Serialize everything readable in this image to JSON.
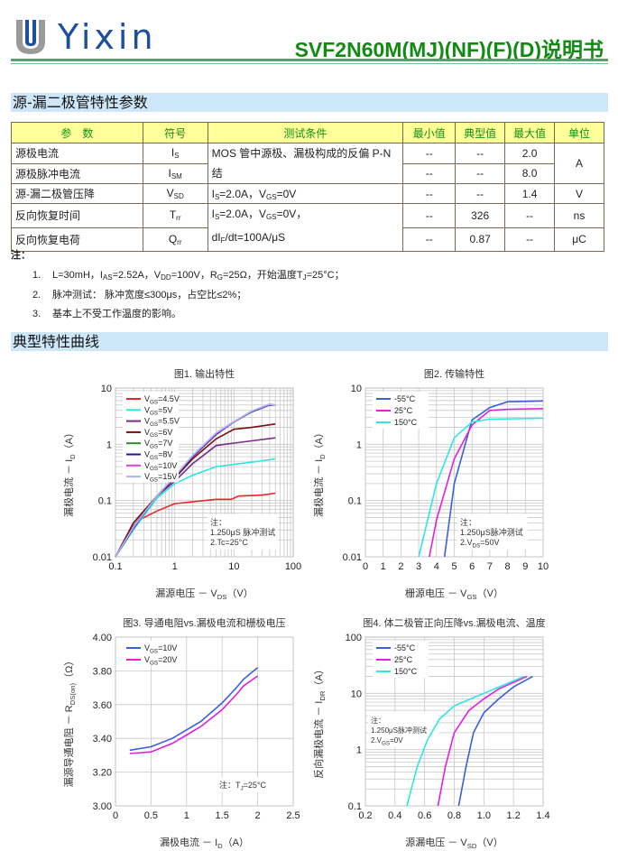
{
  "header": {
    "brand": "Yixin",
    "title": "SVF2N60M(MJ)(NF)(F)(D)说明书",
    "colors": {
      "brand": "#1d4f9c",
      "title": "#138a13",
      "rule": "#4fa56a"
    }
  },
  "section1": {
    "title": "源-漏二极管特性参数"
  },
  "table": {
    "headers": [
      "参　数",
      "符号",
      "测试条件",
      "最小值",
      "典型值",
      "最大值",
      "单位"
    ],
    "rows": [
      {
        "param": "源极电流",
        "symbol": [
          {
            "t": "I"
          },
          {
            "s": "S"
          }
        ],
        "cond": [
          {
            "t": "MOS 管中源极、漏极构成的反偏 P-N 结"
          }
        ],
        "min": "--",
        "typ": "--",
        "max": "2.0",
        "unit": "A"
      },
      {
        "param": "源极脉冲电流",
        "symbol": [
          {
            "t": "I"
          },
          {
            "s": "SM"
          }
        ],
        "min": "--",
        "typ": "--",
        "max": "8.0"
      },
      {
        "param": "源-漏二极管压降",
        "symbol": [
          {
            "t": "V"
          },
          {
            "s": "SD"
          }
        ],
        "cond": [
          {
            "t": "I"
          },
          {
            "s": "S"
          },
          {
            "t": "=2.0A，V"
          },
          {
            "s": "GS"
          },
          {
            "t": "=0V"
          }
        ],
        "min": "--",
        "typ": "--",
        "max": "1.4",
        "unit": "V"
      },
      {
        "param": "反向恢复时间",
        "symbol": [
          {
            "t": "T"
          },
          {
            "s": "rr"
          }
        ],
        "cond": [
          {
            "t": "I"
          },
          {
            "s": "S"
          },
          {
            "t": "=2.0A，V"
          },
          {
            "s": "GS"
          },
          {
            "t": "=0V，"
          }
        ],
        "cond2": [
          {
            "t": "dI"
          },
          {
            "s": "F"
          },
          {
            "t": "/dt=100A/μS"
          }
        ],
        "min": "--",
        "typ": "326",
        "max": "--",
        "unit": "ns"
      },
      {
        "param": "反向恢复电荷",
        "symbol": [
          {
            "t": "Q"
          },
          {
            "s": "rr"
          }
        ],
        "min": "--",
        "typ": "0.87",
        "max": "--",
        "unit": "μC"
      }
    ]
  },
  "notes": {
    "heading": "注：",
    "items": [
      {
        "num": "1.",
        "text": [
          {
            "t": "L=30mH，I"
          },
          {
            "s": "AS"
          },
          {
            "t": "=2.52A，V"
          },
          {
            "s": "DD"
          },
          {
            "t": "=100V，R"
          },
          {
            "s": "G"
          },
          {
            "t": "=25Ω，开始温度T"
          },
          {
            "s": "J"
          },
          {
            "t": "=25°C；"
          }
        ]
      },
      {
        "num": "2.",
        "text": [
          {
            "t": "脉冲测试：  脉冲宽度≤300μs，占空比≤2%；"
          }
        ]
      },
      {
        "num": "3.",
        "text": [
          {
            "t": "基本上不受工作温度的影响。"
          }
        ]
      }
    ]
  },
  "section2": {
    "title": "典型特性曲线"
  },
  "chart_data": [
    {
      "type": "line",
      "title": "图1. 输出特性",
      "xlabel": [
        {
          "t": "漏源电压 － V"
        },
        {
          "s": "DS"
        },
        {
          "t": "（V）"
        }
      ],
      "ylabel": [
        {
          "t": "漏极电流 － I"
        },
        {
          "s": "D"
        },
        {
          "t": "（A）"
        }
      ],
      "xscale": "log",
      "yscale": "log",
      "xlim": [
        0.1,
        100
      ],
      "ylim": [
        0.01,
        10
      ],
      "xticks": [
        "0.1",
        "1",
        "10",
        "100"
      ],
      "yticks": [
        "0.01",
        "0.1",
        "1",
        "10"
      ],
      "grid": true,
      "legend": "top-left",
      "note": [
        "注：",
        "1.250μS 脉冲测试",
        "2.Tc=25°C"
      ],
      "series": [
        {
          "name": "VGS=4.5V",
          "color": "#e8262a",
          "x": [
            0.1,
            0.2,
            0.25,
            0.5,
            1,
            2,
            5,
            9,
            12,
            30,
            50
          ],
          "y": [
            0.01,
            0.035,
            0.045,
            0.065,
            0.088,
            0.095,
            0.105,
            0.105,
            0.12,
            0.125,
            0.135
          ]
        },
        {
          "name": "VGS=5V",
          "color": "#2ee6e6",
          "x": [
            0.1,
            0.2,
            0.5,
            1,
            2,
            5,
            10,
            20,
            50
          ],
          "y": [
            0.01,
            0.03,
            0.11,
            0.2,
            0.28,
            0.4,
            0.44,
            0.48,
            0.55
          ]
        },
        {
          "name": "VGS=5.5V",
          "color": "#7a2a8a",
          "x": [
            0.1,
            0.2,
            0.5,
            1,
            2,
            5,
            10,
            20,
            50
          ],
          "y": [
            0.01,
            0.035,
            0.12,
            0.22,
            0.45,
            0.95,
            1.05,
            1.15,
            1.3
          ]
        },
        {
          "name": "VGS=6V",
          "color": "#7a1010",
          "x": [
            0.1,
            0.2,
            0.5,
            1,
            2,
            5,
            10,
            20,
            50
          ],
          "y": [
            0.01,
            0.04,
            0.12,
            0.25,
            0.55,
            1.25,
            1.85,
            2.0,
            2.3
          ]
        },
        {
          "name": "VGS=7V",
          "color": "#2a8a2a",
          "x": [
            0.1,
            0.2,
            0.5,
            1,
            2,
            5,
            10,
            20,
            40,
            50
          ],
          "y": [
            0.01,
            0.033,
            0.12,
            0.26,
            0.6,
            1.5,
            2.5,
            3.8,
            5.0,
            5.0
          ]
        },
        {
          "name": "VGS=8V",
          "color": "#1a1a9a",
          "x": [
            0.1,
            0.2,
            0.5,
            1,
            2,
            5,
            10,
            20,
            40,
            50
          ],
          "y": [
            0.01,
            0.032,
            0.12,
            0.26,
            0.6,
            1.5,
            2.5,
            3.8,
            5.0,
            5.0
          ]
        },
        {
          "name": "VGS=10V",
          "color": "#e040e0",
          "x": [
            0.1,
            0.2,
            0.5,
            1,
            2,
            5,
            10,
            20,
            40,
            50
          ],
          "y": [
            0.01,
            0.033,
            0.12,
            0.27,
            0.62,
            1.55,
            2.5,
            3.9,
            5.1,
            5.0
          ]
        },
        {
          "name": "VGS=15V",
          "color": "#a8b8ee",
          "x": [
            0.1,
            0.2,
            0.5,
            1,
            2,
            5,
            10,
            20,
            40,
            50
          ],
          "y": [
            0.01,
            0.034,
            0.12,
            0.27,
            0.63,
            1.6,
            2.55,
            3.9,
            5.2,
            5.0
          ]
        }
      ]
    },
    {
      "type": "line",
      "title": "图2. 传输特性",
      "xlabel": [
        {
          "t": "栅源电压 － V"
        },
        {
          "s": "GS"
        },
        {
          "t": "（V）"
        }
      ],
      "ylabel": [
        {
          "t": "漏极电流 － I"
        },
        {
          "s": "D"
        },
        {
          "t": "（A）"
        }
      ],
      "xscale": "linear",
      "yscale": "log",
      "xlim": [
        0,
        10
      ],
      "ylim": [
        0.01,
        10
      ],
      "xticks": [
        "0",
        "1",
        "2",
        "3",
        "4",
        "5",
        "6",
        "7",
        "8",
        "9",
        "10"
      ],
      "yticks": [
        "0.01",
        "0.1",
        "1",
        "10"
      ],
      "grid": true,
      "legend": "top-left",
      "note": [
        "注：",
        "1.250μS脉冲测试",
        "2.VDS=50V"
      ],
      "series": [
        {
          "name": "-55°C",
          "color": "#3a5fd8",
          "x": [
            4.45,
            5,
            6,
            7,
            8,
            10
          ],
          "y": [
            0.01,
            0.2,
            2.7,
            4.5,
            5.7,
            5.9
          ]
        },
        {
          "name": "25°C",
          "color": "#e020e0",
          "x": [
            3.6,
            4,
            5,
            6,
            7,
            8,
            10
          ],
          "y": [
            0.01,
            0.045,
            0.55,
            2.2,
            4.0,
            4.2,
            4.3
          ]
        },
        {
          "name": "150°C",
          "color": "#2ee6e6",
          "x": [
            3,
            4,
            5,
            6,
            7,
            10
          ],
          "y": [
            0.01,
            0.2,
            1.3,
            2.5,
            2.8,
            2.9
          ]
        }
      ]
    },
    {
      "type": "line",
      "title": "图3. 导通电阻vs.漏极电流和栅极电压",
      "xlabel": [
        {
          "t": "漏极电流 － I"
        },
        {
          "s": "D"
        },
        {
          "t": "（A）"
        }
      ],
      "ylabel": [
        {
          "t": "漏源导通电阻 － R"
        },
        {
          "s": "DS(on)"
        },
        {
          "t": "（Ω）"
        }
      ],
      "xscale": "linear",
      "yscale": "linear",
      "xlim": [
        0,
        2.5
      ],
      "ylim": [
        3.0,
        4.0
      ],
      "xticks": [
        "0",
        "0.5",
        "1",
        "1.5",
        "2",
        "2.5"
      ],
      "yticks": [
        "3.00",
        "3.20",
        "3.40",
        "3.60",
        "3.80",
        "4.00"
      ],
      "grid": true,
      "legend": "top-left",
      "note": [
        "注：TJ=25°C"
      ],
      "series": [
        {
          "name": "VGS=10V",
          "color": "#3a5fd8",
          "x": [
            0.2,
            0.5,
            0.8,
            1,
            1.2,
            1.5,
            1.7,
            1.8,
            2
          ],
          "y": [
            3.33,
            3.35,
            3.4,
            3.45,
            3.5,
            3.61,
            3.7,
            3.75,
            3.82
          ]
        },
        {
          "name": "VGS=20V",
          "color": "#e020e0",
          "x": [
            0.2,
            0.5,
            0.8,
            1,
            1.2,
            1.5,
            1.7,
            1.8,
            2
          ],
          "y": [
            3.31,
            3.32,
            3.37,
            3.42,
            3.47,
            3.57,
            3.66,
            3.71,
            3.77
          ]
        }
      ]
    },
    {
      "type": "line",
      "title": "图4. 体二极管正向压降vs.漏极电流、温度",
      "xlabel": [
        {
          "t": "源漏电压 － V"
        },
        {
          "s": "SD"
        },
        {
          "t": "（V）"
        }
      ],
      "ylabel": [
        {
          "t": "反向漏极电流 － I"
        },
        {
          "s": "DR"
        },
        {
          "t": "（A）"
        }
      ],
      "xscale": "linear",
      "yscale": "log",
      "xlim": [
        0.2,
        1.4
      ],
      "ylim": [
        0.1,
        100
      ],
      "xticks": [
        "0.2",
        "0.4",
        "0.6",
        "0.8",
        "1.0",
        "1.2",
        "1.4"
      ],
      "yticks": [
        "0.1",
        "1",
        "10",
        "100"
      ],
      "grid": true,
      "legend": "top-left",
      "note": [
        "注：",
        "1.250μS脉冲测试",
        "2.VGS=0V"
      ],
      "series": [
        {
          "name": "-55°C",
          "color": "#3a5fd8",
          "x": [
            0.83,
            0.88,
            0.93,
            1.0,
            1.1,
            1.2,
            1.33
          ],
          "y": [
            0.1,
            0.5,
            2,
            4.5,
            8,
            13,
            20
          ]
        },
        {
          "name": "25°C",
          "color": "#e020e0",
          "x": [
            0.69,
            0.74,
            0.8,
            0.9,
            1.0,
            1.1,
            1.29
          ],
          "y": [
            0.1,
            0.5,
            2,
            5,
            8,
            12,
            20
          ]
        },
        {
          "name": "150°C",
          "color": "#2ee6e6",
          "x": [
            0.48,
            0.55,
            0.62,
            0.7,
            0.8,
            1.0,
            1.27
          ],
          "y": [
            0.1,
            0.5,
            1.5,
            3.5,
            6,
            10,
            20
          ]
        }
      ]
    }
  ]
}
